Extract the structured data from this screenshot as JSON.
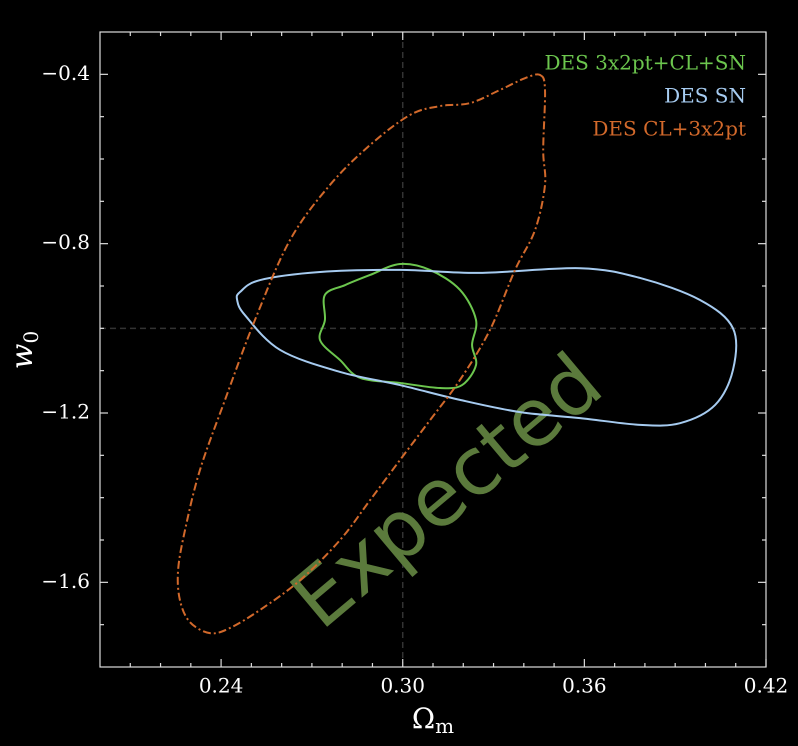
{
  "chart_data": {
    "type": "contour",
    "xlabel": "Ω",
    "xlabel_sub": "m",
    "ylabel": "w",
    "ylabel_sub": "0",
    "watermark": "Expected",
    "xlim": [
      0.2,
      0.42
    ],
    "ylim": [
      -1.8,
      -0.3
    ],
    "xticks": [
      {
        "value": 0.24,
        "label": "0.24"
      },
      {
        "value": 0.3,
        "label": "0.30"
      },
      {
        "value": 0.36,
        "label": "0.36"
      },
      {
        "value": 0.42,
        "label": "0.42"
      }
    ],
    "yticks": [
      {
        "value": -0.4,
        "label": "−0.4"
      },
      {
        "value": -0.8,
        "label": "−0.8"
      },
      {
        "value": -1.2,
        "label": "−1.2"
      },
      {
        "value": -1.6,
        "label": "−1.6"
      }
    ],
    "xminorticks": [
      0.21,
      0.22,
      0.23,
      0.25,
      0.26,
      0.27,
      0.28,
      0.29,
      0.31,
      0.32,
      0.33,
      0.34,
      0.35,
      0.37,
      0.38,
      0.39,
      0.4,
      0.41
    ],
    "yminorticks": [
      -0.5,
      -0.6,
      -0.7,
      -0.9,
      -1.0,
      -1.1,
      -1.3,
      -1.4,
      -1.5,
      -1.7
    ],
    "vline": 0.3,
    "hline": -1.0,
    "legend": "upper right",
    "series": [
      {
        "name": "DES 3x2pt+CL+SN",
        "color": "#6cc64e",
        "style": "solid",
        "x": [
          0.2991,
          0.309,
          0.3189,
          0.3242,
          0.3229,
          0.3242,
          0.3196,
          0.3123,
          0.2991,
          0.2859,
          0.2793,
          0.2727,
          0.2743,
          0.2743,
          0.2809,
          0.2892
        ],
        "y": [
          -0.848,
          -0.862,
          -0.909,
          -0.98,
          -1.039,
          -1.087,
          -1.134,
          -1.141,
          -1.129,
          -1.117,
          -1.075,
          -1.028,
          -0.98,
          -0.921,
          -0.898,
          -0.874
        ]
      },
      {
        "name": "DES SN",
        "color": "#a6cbf0",
        "style": "solid",
        "x": [
          0.2463,
          0.2529,
          0.2727,
          0.2991,
          0.3255,
          0.3586,
          0.3784,
          0.3982,
          0.4091,
          0.4091,
          0.4032,
          0.3916,
          0.3784,
          0.3586,
          0.3388,
          0.3189,
          0.2991,
          0.2793,
          0.2595,
          0.2479,
          0.2453
        ],
        "y": [
          -0.914,
          -0.886,
          -0.867,
          -0.862,
          -0.869,
          -0.858,
          -0.881,
          -0.933,
          -1.0,
          -1.098,
          -1.181,
          -1.224,
          -1.228,
          -1.212,
          -1.198,
          -1.169,
          -1.134,
          -1.103,
          -1.051,
          -0.969,
          -0.933
        ]
      },
      {
        "name": "DES CL+3x2pt",
        "color": "#d2692b",
        "style": "dashdot",
        "x": [
          0.3454,
          0.347,
          0.3464,
          0.347,
          0.3437,
          0.3371,
          0.3288,
          0.3189,
          0.309,
          0.2991,
          0.2892,
          0.2793,
          0.2661,
          0.2529,
          0.2429,
          0.2363,
          0.2297,
          0.2264,
          0.2258,
          0.2281,
          0.233,
          0.2413,
          0.2512,
          0.2628,
          0.276,
          0.2892,
          0.3024,
          0.3123,
          0.3222,
          0.3321,
          0.3404
        ],
        "y": [
          -0.4016,
          -0.437,
          -0.579,
          -0.661,
          -0.768,
          -0.862,
          -1.004,
          -1.122,
          -1.217,
          -1.311,
          -1.406,
          -1.5,
          -1.595,
          -1.665,
          -1.708,
          -1.72,
          -1.694,
          -1.642,
          -1.571,
          -1.476,
          -1.335,
          -1.169,
          -0.98,
          -0.791,
          -0.661,
          -0.567,
          -0.496,
          -0.475,
          -0.468,
          -0.437,
          -0.409
        ]
      }
    ]
  }
}
